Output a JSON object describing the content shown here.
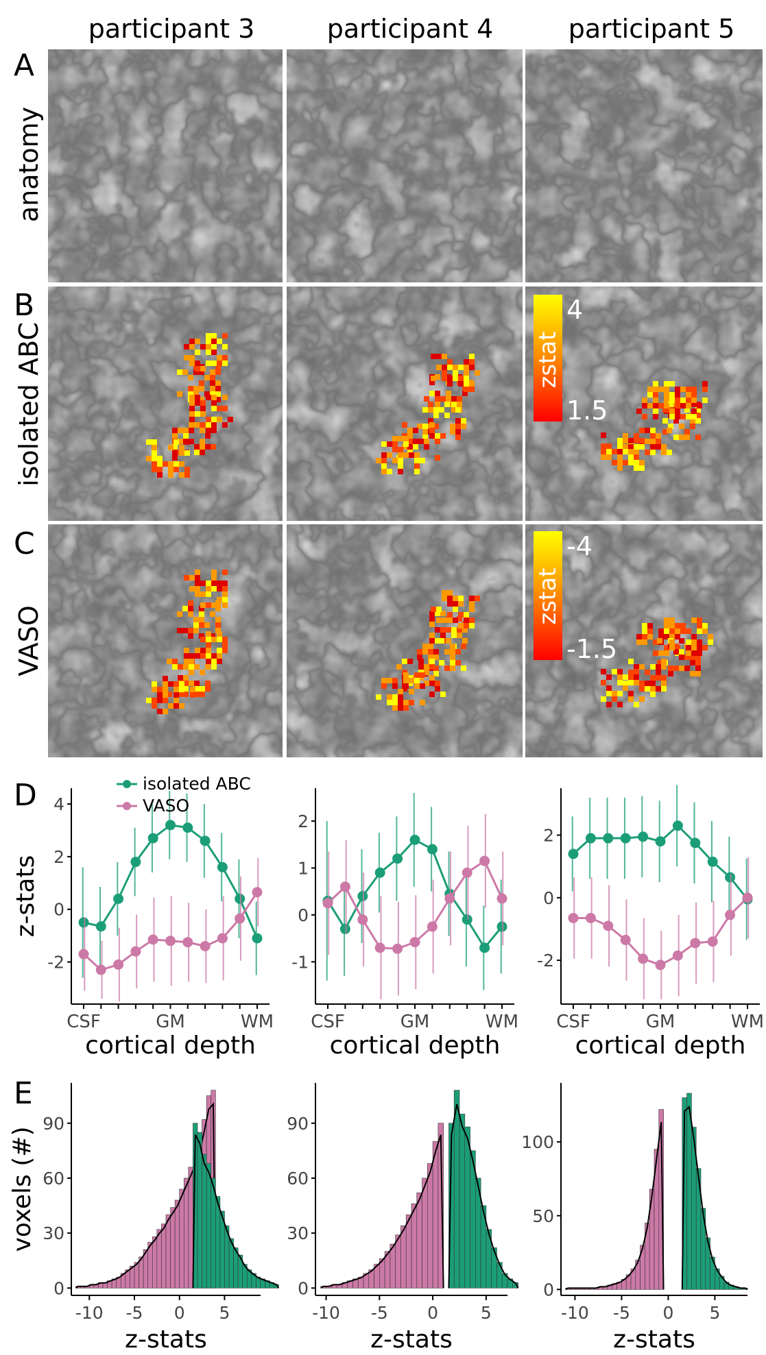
{
  "colors": {
    "abc": "#1b9e77",
    "vaso": "#cc79a7",
    "axis": "#000000",
    "tick": "#555555"
  },
  "columns": [
    "participant 3",
    "participant 4",
    "participant 5"
  ],
  "panel_letters": [
    "A",
    "B",
    "C",
    "D",
    "E"
  ],
  "row_labels": [
    "anatomy",
    "isolated ABC",
    "VASO"
  ],
  "colorbars": [
    {
      "title": "zstat",
      "max_label": "4",
      "min_label": "1.5"
    },
    {
      "title": "zstat",
      "max_label": "-4",
      "min_label": "-1.5"
    }
  ],
  "chart_data": [
    {
      "type": "line",
      "panel": "D",
      "participant": "participant 3",
      "x": [
        1,
        2,
        3,
        4,
        5,
        6,
        7,
        8,
        9,
        10,
        11
      ],
      "xticks": {
        "positions": [
          1,
          2,
          3,
          4,
          5,
          6,
          7,
          8,
          9,
          10,
          11
        ],
        "labels": [
          "CSF",
          "",
          "",
          "",
          "",
          "GM",
          "",
          "",
          "",
          "",
          "WM"
        ]
      },
      "xlabel": "cortical depth",
      "ylabel": "z-stats",
      "ylim": [
        -3.6,
        4.6
      ],
      "yticks": [
        -2,
        0,
        2,
        4
      ],
      "legend": {
        "placement": "top-left",
        "entries": [
          "isolated ABC",
          "VASO"
        ]
      },
      "series": [
        {
          "name": "isolated ABC",
          "values": [
            -0.5,
            -0.65,
            0.4,
            1.8,
            2.7,
            3.2,
            3.1,
            2.6,
            1.6,
            0.4,
            -1.1
          ],
          "err": [
            2.1,
            1.5,
            1.4,
            1.3,
            1.3,
            1.3,
            1.3,
            1.4,
            1.3,
            1.5,
            1.4
          ]
        },
        {
          "name": "VASO",
          "values": [
            -1.7,
            -2.3,
            -2.1,
            -1.6,
            -1.15,
            -1.2,
            -1.25,
            -1.4,
            -1.1,
            -0.35,
            0.65
          ],
          "err": [
            1.4,
            1.1,
            1.4,
            1.4,
            1.6,
            1.7,
            1.5,
            1.4,
            1.6,
            1.6,
            1.3
          ]
        }
      ]
    },
    {
      "type": "line",
      "panel": "D",
      "participant": "participant 4",
      "x": [
        1,
        2,
        3,
        4,
        5,
        6,
        7,
        8,
        9,
        10,
        11
      ],
      "xticks": {
        "positions": [
          1,
          2,
          3,
          4,
          5,
          6,
          7,
          8,
          9,
          10,
          11
        ],
        "labels": [
          "CSF",
          "",
          "",
          "",
          "",
          "GM",
          "",
          "",
          "",
          "",
          "WM"
        ]
      },
      "xlabel": "cortical depth",
      "ylabel": "",
      "ylim": [
        -1.9,
        2.7
      ],
      "yticks": [
        -1,
        0,
        1,
        2
      ],
      "series": [
        {
          "name": "isolated ABC",
          "values": [
            0.3,
            -0.3,
            0.4,
            0.9,
            1.2,
            1.6,
            1.4,
            0.45,
            -0.1,
            -0.7,
            -0.25
          ],
          "err": [
            1.7,
            1.0,
            1.0,
            0.85,
            0.9,
            1.0,
            0.9,
            0.9,
            1.0,
            0.9,
            1.0
          ]
        },
        {
          "name": "VASO",
          "values": [
            0.25,
            0.6,
            -0.1,
            -0.7,
            -0.72,
            -0.58,
            -0.25,
            0.35,
            0.9,
            1.15,
            0.35
          ],
          "err": [
            1.1,
            1.0,
            1.0,
            1.1,
            1.0,
            1.0,
            1.0,
            1.0,
            1.0,
            1.0,
            1.0
          ]
        }
      ]
    },
    {
      "type": "line",
      "panel": "D",
      "participant": "participant 5",
      "x": [
        1,
        2,
        3,
        4,
        5,
        6,
        7,
        8,
        9,
        10,
        11
      ],
      "xticks": {
        "positions": [
          1,
          2,
          3,
          4,
          5,
          6,
          7,
          8,
          9,
          10,
          11
        ],
        "labels": [
          "CSF",
          "",
          "",
          "",
          "",
          "GM",
          "",
          "",
          "",
          "",
          "WM"
        ]
      },
      "xlabel": "cortical depth",
      "ylabel": "",
      "ylim": [
        -3.4,
        3.5
      ],
      "yticks": [
        -2,
        0,
        2
      ],
      "series": [
        {
          "name": "isolated ABC",
          "values": [
            1.4,
            1.9,
            1.9,
            1.9,
            1.95,
            1.8,
            2.3,
            1.75,
            1.15,
            0.65,
            -0.05
          ],
          "err": [
            1.2,
            1.3,
            1.3,
            1.3,
            1.3,
            1.3,
            1.3,
            1.3,
            1.3,
            1.3,
            1.3
          ]
        },
        {
          "name": "VASO",
          "values": [
            -0.65,
            -0.65,
            -0.9,
            -1.35,
            -1.95,
            -2.15,
            -1.85,
            -1.45,
            -1.4,
            -0.55,
            0.0
          ],
          "err": [
            1.3,
            1.3,
            1.3,
            1.3,
            1.3,
            1.1,
            1.3,
            1.3,
            1.3,
            1.3,
            1.3
          ]
        }
      ]
    },
    {
      "type": "histogram",
      "panel": "E",
      "participant": "participant 3",
      "xlabel": "z-stats",
      "ylabel": "voxels (#)",
      "xlim": [
        -12,
        9
      ],
      "xticks": [
        -10,
        -5,
        0,
        5
      ],
      "ylim": [
        -4,
        112
      ],
      "yticks": [
        0,
        30,
        60,
        90
      ],
      "series": [
        {
          "name": "VASO",
          "bins": {
            "start": -11.5,
            "width": 0.5
          },
          "counts": [
            1,
            1,
            1,
            2,
            2,
            3,
            3,
            4,
            5,
            6,
            8,
            10,
            12,
            14,
            17,
            21,
            25,
            28,
            32,
            35,
            40,
            44,
            48,
            54,
            60,
            66,
            72,
            80,
            92,
            105,
            108
          ]
        },
        {
          "name": "isolated ABC",
          "bins": {
            "start": 1.5,
            "width": 0.5
          },
          "counts": [
            90,
            85,
            73,
            68,
            60,
            50,
            42,
            34,
            27,
            22,
            18,
            13,
            10,
            8,
            6,
            5,
            4,
            3,
            2
          ]
        }
      ]
    },
    {
      "type": "histogram",
      "panel": "E",
      "participant": "participant 4",
      "xlabel": "z-stats",
      "ylabel": "",
      "xlim": [
        -11,
        7
      ],
      "xticks": [
        -10,
        -5,
        0,
        5
      ],
      "ylim": [
        -4,
        112
      ],
      "yticks": [
        0,
        30,
        60,
        90
      ],
      "series": [
        {
          "name": "VASO",
          "bins": {
            "start": -10.5,
            "width": 0.5
          },
          "counts": [
            1,
            1,
            2,
            2,
            3,
            4,
            5,
            6,
            8,
            10,
            13,
            16,
            20,
            24,
            29,
            34,
            40,
            46,
            52,
            60,
            68,
            80,
            90
          ]
        },
        {
          "name": "isolated ABC",
          "bins": {
            "start": 1.5,
            "width": 0.5
          },
          "counts": [
            90,
            108,
            95,
            88,
            75,
            60,
            45,
            32,
            22,
            14,
            8,
            5,
            3
          ]
        }
      ]
    },
    {
      "type": "histogram",
      "panel": "E",
      "participant": "participant 5",
      "xlabel": "z-stats",
      "ylabel": "",
      "xlim": [
        -11.5,
        8.5
      ],
      "xticks": [
        -10,
        -5,
        0,
        5
      ],
      "ylim": [
        -4,
        140
      ],
      "yticks": [
        0,
        50,
        100
      ],
      "series": [
        {
          "name": "VASO",
          "bins": {
            "start": -11,
            "width": 0.5
          },
          "counts": [
            1,
            1,
            1,
            1,
            1,
            1,
            1,
            2,
            2,
            3,
            4,
            5,
            7,
            10,
            14,
            20,
            30,
            45,
            68,
            95,
            122
          ]
        },
        {
          "name": "isolated ABC",
          "bins": {
            "start": 1.5,
            "width": 0.5
          },
          "counts": [
            130,
            133,
            110,
            82,
            55,
            35,
            22,
            14,
            9,
            5,
            3,
            2,
            1,
            1
          ]
        }
      ]
    }
  ]
}
